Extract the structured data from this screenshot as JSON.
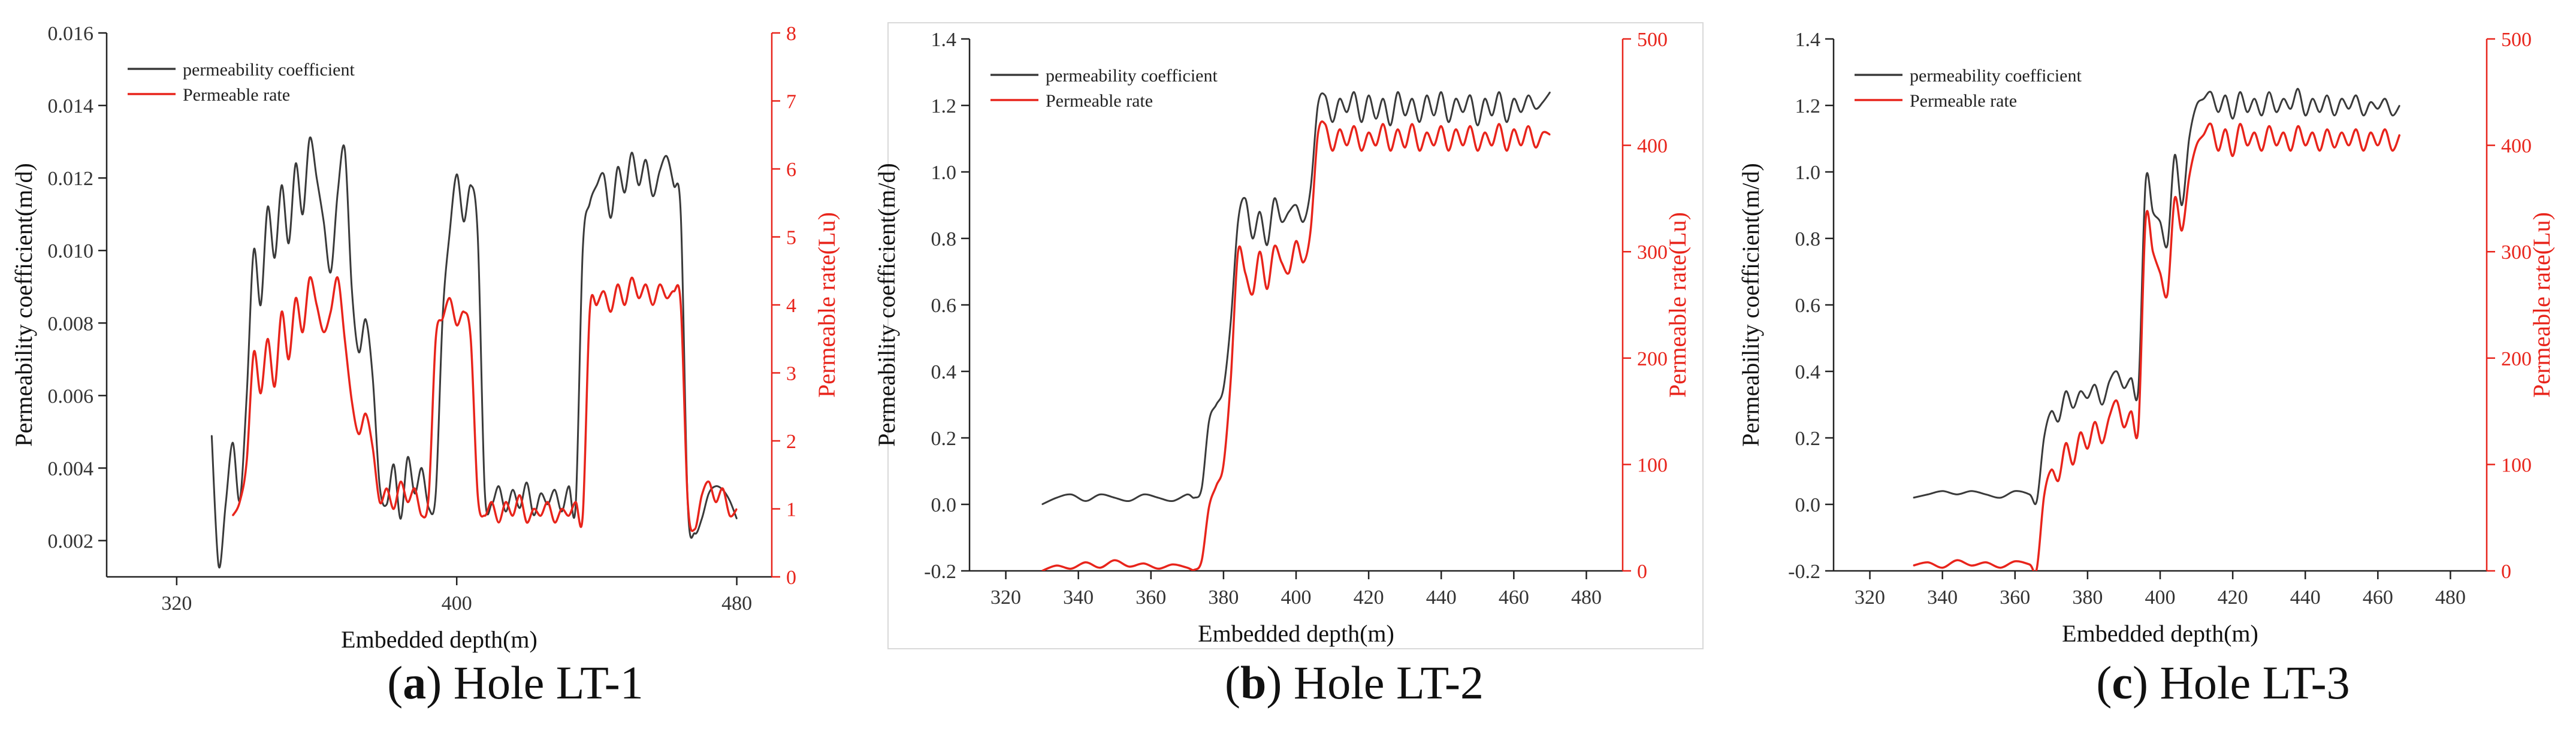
{
  "figure": {
    "panels": [
      {
        "letter": "a",
        "caption": "Hole LT-1"
      },
      {
        "letter": "b",
        "caption": "Hole LT-2"
      },
      {
        "letter": "c",
        "caption": "Hole LT-3"
      }
    ]
  },
  "colors": {
    "perm_coef": "#3a3a3a",
    "perm_rate": "#e8241b",
    "axis": "#222222",
    "right_axis": "#e8241b"
  },
  "chart_data": [
    {
      "type": "line",
      "title": "Hole LT-1",
      "xlabel": "Embedded depth(m)",
      "ylabel": "Permeability coefficient(m/d)",
      "y2label": "Permeable rate(Lu)",
      "xlim": [
        300,
        490
      ],
      "xticks": [
        320,
        400,
        480
      ],
      "ylim": [
        0.001,
        0.016
      ],
      "yticks": [
        0.002,
        0.004,
        0.006,
        0.008,
        0.01,
        0.012,
        0.014,
        0.016
      ],
      "ytick_labels": [
        "0.002",
        "0.004",
        "0.006",
        "0.008",
        "0.010",
        "0.012",
        "0.014",
        "0.016"
      ],
      "y2lim": [
        0,
        8
      ],
      "y2ticks": [
        0,
        1,
        2,
        3,
        4,
        5,
        6,
        7,
        8
      ],
      "legend_position": "top-left",
      "series": [
        {
          "name": "permeability coefficient",
          "axis": "left",
          "x": [
            330,
            332,
            334,
            336,
            338,
            340,
            342,
            344,
            346,
            348,
            350,
            352,
            354,
            356,
            358,
            360,
            362,
            364,
            366,
            368,
            370,
            372,
            374,
            376,
            378,
            380,
            382,
            384,
            386,
            388,
            390,
            392,
            394,
            396,
            398,
            400,
            402,
            404,
            406,
            408,
            410,
            412,
            414,
            416,
            418,
            420,
            422,
            424,
            426,
            428,
            430,
            432,
            434,
            436,
            438,
            440,
            442,
            444,
            446,
            448,
            450,
            452,
            454,
            456,
            458,
            460,
            462,
            464,
            466,
            468,
            470,
            472,
            474,
            476,
            478,
            480
          ],
          "values": [
            0.0049,
            0.0013,
            0.003,
            0.0047,
            0.0031,
            0.006,
            0.01,
            0.0085,
            0.0112,
            0.0098,
            0.0118,
            0.0102,
            0.0124,
            0.011,
            0.0131,
            0.012,
            0.0108,
            0.0094,
            0.0116,
            0.0128,
            0.009,
            0.0072,
            0.0081,
            0.0065,
            0.0035,
            0.003,
            0.0041,
            0.0026,
            0.0043,
            0.0033,
            0.004,
            0.0029,
            0.0033,
            0.0082,
            0.0105,
            0.0121,
            0.0108,
            0.0118,
            0.0104,
            0.0034,
            0.003,
            0.0035,
            0.0028,
            0.0034,
            0.0029,
            0.0036,
            0.0027,
            0.0033,
            0.003,
            0.0034,
            0.0028,
            0.0035,
            0.003,
            0.01,
            0.0113,
            0.0118,
            0.0121,
            0.0109,
            0.0123,
            0.0116,
            0.0127,
            0.0118,
            0.0125,
            0.0115,
            0.0122,
            0.0126,
            0.0118,
            0.011,
            0.003,
            0.0022,
            0.0026,
            0.0033,
            0.0035,
            0.0034,
            0.0031,
            0.0026
          ]
        },
        {
          "name": "Permeable rate",
          "axis": "right",
          "x": [
            336,
            338,
            340,
            342,
            344,
            346,
            348,
            350,
            352,
            354,
            356,
            358,
            360,
            362,
            364,
            366,
            368,
            370,
            372,
            374,
            376,
            378,
            380,
            382,
            384,
            386,
            388,
            390,
            392,
            394,
            396,
            398,
            400,
            402,
            404,
            406,
            408,
            410,
            412,
            414,
            416,
            418,
            420,
            422,
            424,
            426,
            428,
            430,
            432,
            434,
            436,
            438,
            440,
            442,
            444,
            446,
            448,
            450,
            452,
            454,
            456,
            458,
            460,
            462,
            464,
            466,
            468,
            470,
            472,
            474,
            476,
            478,
            480
          ],
          "values": [
            0.9,
            1.1,
            1.7,
            3.3,
            2.7,
            3.5,
            2.8,
            3.9,
            3.2,
            4.1,
            3.6,
            4.4,
            4.0,
            3.6,
            3.9,
            4.4,
            3.5,
            2.6,
            2.1,
            2.4,
            1.9,
            1.1,
            1.3,
            1.0,
            1.4,
            1.1,
            1.3,
            0.9,
            1.2,
            3.5,
            3.8,
            4.1,
            3.7,
            3.9,
            3.5,
            1.2,
            0.9,
            1.1,
            0.8,
            1.1,
            0.9,
            1.2,
            0.8,
            1.0,
            0.9,
            1.1,
            0.8,
            1.0,
            0.9,
            1.1,
            0.9,
            3.9,
            4.0,
            4.2,
            3.9,
            4.3,
            4.0,
            4.4,
            4.1,
            4.3,
            4.0,
            4.3,
            4.1,
            4.2,
            4.0,
            1.1,
            0.7,
            1.2,
            1.4,
            1.1,
            1.3,
            0.9,
            1.0
          ]
        }
      ]
    },
    {
      "type": "line",
      "title": "Hole LT-2",
      "xlabel": "Embedded depth(m)",
      "ylabel": "Permeability coefficient(m/d)",
      "y2label": "Permeable rate(Lu)",
      "xlim": [
        310,
        490
      ],
      "xticks": [
        320,
        340,
        360,
        380,
        400,
        420,
        440,
        460,
        480
      ],
      "ylim": [
        -0.2,
        1.4
      ],
      "yticks": [
        -0.2,
        0.0,
        0.2,
        0.4,
        0.6,
        0.8,
        1.0,
        1.2,
        1.4
      ],
      "ytick_labels": [
        "-0.2",
        "0.0",
        "0.2",
        "0.4",
        "0.6",
        "0.8",
        "1.0",
        "1.2",
        "1.4"
      ],
      "y2lim": [
        0,
        500
      ],
      "y2ticks": [
        0,
        100,
        200,
        300,
        400,
        500
      ],
      "legend_position": "top-left",
      "series": [
        {
          "name": "permeability coefficient",
          "axis": "left",
          "x": [
            330,
            334,
            338,
            342,
            346,
            350,
            354,
            358,
            362,
            366,
            370,
            372,
            374,
            376,
            378,
            380,
            382,
            384,
            386,
            388,
            390,
            392,
            394,
            396,
            398,
            400,
            402,
            404,
            406,
            408,
            410,
            412,
            414,
            416,
            418,
            420,
            422,
            424,
            426,
            428,
            430,
            432,
            434,
            436,
            438,
            440,
            442,
            444,
            446,
            448,
            450,
            452,
            454,
            456,
            458,
            460,
            462,
            464,
            466,
            468,
            470
          ],
          "values": [
            0.0,
            0.02,
            0.03,
            0.01,
            0.03,
            0.02,
            0.01,
            0.03,
            0.02,
            0.01,
            0.03,
            0.02,
            0.05,
            0.25,
            0.3,
            0.35,
            0.55,
            0.85,
            0.92,
            0.8,
            0.88,
            0.78,
            0.92,
            0.85,
            0.88,
            0.9,
            0.85,
            0.95,
            1.2,
            1.23,
            1.15,
            1.22,
            1.18,
            1.24,
            1.15,
            1.23,
            1.16,
            1.22,
            1.14,
            1.24,
            1.17,
            1.22,
            1.15,
            1.23,
            1.17,
            1.24,
            1.15,
            1.22,
            1.18,
            1.23,
            1.14,
            1.22,
            1.17,
            1.24,
            1.15,
            1.22,
            1.18,
            1.23,
            1.19,
            1.21,
            1.24
          ]
        },
        {
          "name": "Permeable rate",
          "axis": "right",
          "x": [
            330,
            334,
            338,
            342,
            346,
            350,
            354,
            358,
            362,
            366,
            370,
            372,
            374,
            376,
            378,
            380,
            382,
            384,
            386,
            388,
            390,
            392,
            394,
            396,
            398,
            400,
            402,
            404,
            406,
            408,
            410,
            412,
            414,
            416,
            418,
            420,
            422,
            424,
            426,
            428,
            430,
            432,
            434,
            436,
            438,
            440,
            442,
            444,
            446,
            448,
            450,
            452,
            454,
            456,
            458,
            460,
            462,
            464,
            466,
            468,
            470
          ],
          "values": [
            0,
            5,
            2,
            8,
            3,
            10,
            4,
            7,
            2,
            6,
            3,
            1,
            10,
            60,
            80,
            100,
            180,
            300,
            280,
            260,
            300,
            265,
            305,
            290,
            280,
            310,
            290,
            320,
            410,
            420,
            395,
            415,
            400,
            418,
            395,
            412,
            400,
            420,
            395,
            415,
            398,
            420,
            395,
            412,
            400,
            418,
            395,
            415,
            400,
            418,
            395,
            412,
            400,
            420,
            395,
            415,
            400,
            418,
            398,
            412,
            410
          ]
        }
      ]
    },
    {
      "type": "line",
      "title": "Hole LT-3",
      "xlabel": "Embedded depth(m)",
      "ylabel": "Permeability coefficient(m/d)",
      "y2label": "Permeable rate(Lu)",
      "xlim": [
        310,
        490
      ],
      "xticks": [
        320,
        340,
        360,
        380,
        400,
        420,
        440,
        460,
        480
      ],
      "ylim": [
        -0.2,
        1.4
      ],
      "yticks": [
        -0.2,
        0.0,
        0.2,
        0.4,
        0.6,
        0.8,
        1.0,
        1.2,
        1.4
      ],
      "ytick_labels": [
        "-0.2",
        "0.0",
        "0.2",
        "0.4",
        "0.6",
        "0.8",
        "1.0",
        "1.2",
        "1.4"
      ],
      "y2lim": [
        0,
        500
      ],
      "y2ticks": [
        0,
        100,
        200,
        300,
        400,
        500
      ],
      "legend_position": "top-left",
      "series": [
        {
          "name": "permeability coefficient",
          "axis": "left",
          "x": [
            332,
            336,
            340,
            344,
            348,
            352,
            356,
            360,
            364,
            366,
            368,
            370,
            372,
            374,
            376,
            378,
            380,
            382,
            384,
            386,
            388,
            390,
            392,
            394,
            396,
            398,
            400,
            402,
            404,
            406,
            408,
            410,
            412,
            414,
            416,
            418,
            420,
            422,
            424,
            426,
            428,
            430,
            432,
            434,
            436,
            438,
            440,
            442,
            444,
            446,
            448,
            450,
            452,
            454,
            456,
            458,
            460,
            462,
            464,
            466
          ],
          "values": [
            0.02,
            0.03,
            0.04,
            0.03,
            0.04,
            0.03,
            0.02,
            0.04,
            0.03,
            0.01,
            0.2,
            0.28,
            0.25,
            0.34,
            0.29,
            0.34,
            0.32,
            0.36,
            0.3,
            0.37,
            0.4,
            0.35,
            0.38,
            0.35,
            0.97,
            0.88,
            0.85,
            0.78,
            1.05,
            0.9,
            1.1,
            1.2,
            1.22,
            1.24,
            1.18,
            1.23,
            1.16,
            1.24,
            1.18,
            1.22,
            1.17,
            1.24,
            1.18,
            1.22,
            1.19,
            1.25,
            1.17,
            1.22,
            1.18,
            1.23,
            1.17,
            1.22,
            1.19,
            1.23,
            1.17,
            1.21,
            1.19,
            1.22,
            1.17,
            1.2
          ]
        },
        {
          "name": "Permeable rate",
          "axis": "right",
          "x": [
            332,
            336,
            340,
            344,
            348,
            352,
            356,
            360,
            364,
            366,
            368,
            370,
            372,
            374,
            376,
            378,
            380,
            382,
            384,
            386,
            388,
            390,
            392,
            394,
            396,
            398,
            400,
            402,
            404,
            406,
            408,
            410,
            412,
            414,
            416,
            418,
            420,
            422,
            424,
            426,
            428,
            430,
            432,
            434,
            436,
            438,
            440,
            442,
            444,
            446,
            448,
            450,
            452,
            454,
            456,
            458,
            460,
            462,
            464,
            466
          ],
          "values": [
            5,
            8,
            3,
            10,
            5,
            8,
            3,
            9,
            6,
            2,
            70,
            95,
            85,
            120,
            100,
            130,
            115,
            140,
            120,
            145,
            160,
            135,
            150,
            135,
            330,
            300,
            280,
            260,
            350,
            320,
            370,
            400,
            410,
            420,
            395,
            415,
            390,
            420,
            400,
            412,
            395,
            418,
            400,
            412,
            395,
            418,
            400,
            412,
            395,
            415,
            398,
            412,
            400,
            415,
            395,
            412,
            400,
            415,
            395,
            410
          ]
        }
      ]
    }
  ]
}
